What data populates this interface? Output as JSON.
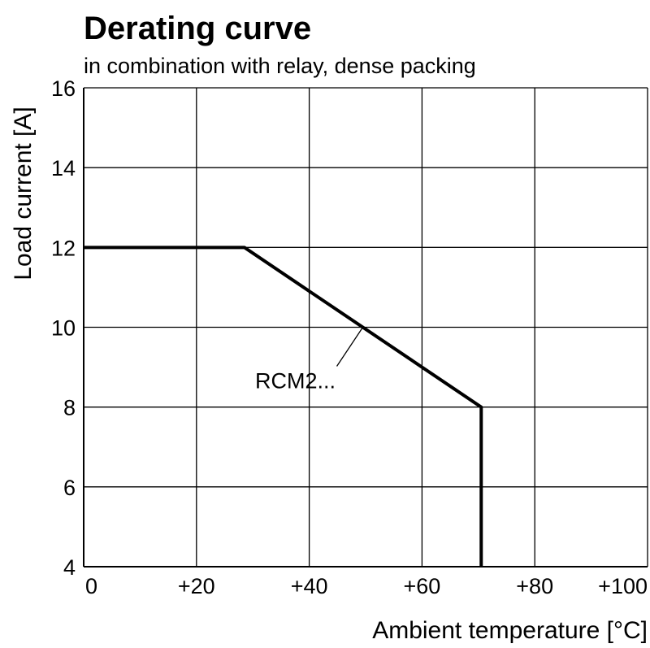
{
  "chart_data": {
    "type": "line",
    "title": "Derating curve",
    "subtitle": "in combination with relay, dense packing",
    "x_label": "Ambient temperature [°C]",
    "y_label": "Load current [A]",
    "x": [
      0,
      28.5,
      70.5,
      70.5
    ],
    "series": [
      {
        "name": "RCM2...",
        "color": "#000000",
        "values": [
          12,
          12,
          8,
          4
        ]
      }
    ],
    "xlim": [
      0,
      100
    ],
    "xticks": [
      0,
      {
        "value": 20,
        "label": "+20"
      },
      {
        "value": 40,
        "label": "+40"
      },
      {
        "value": 60,
        "label": "+60"
      },
      {
        "value": 80,
        "label": "+80"
      },
      {
        "value": 100,
        "label": "+100"
      }
    ],
    "ylim": [
      4,
      16
    ],
    "yticks": [
      4,
      6,
      8,
      10,
      12,
      14,
      16
    ],
    "grid": true
  }
}
